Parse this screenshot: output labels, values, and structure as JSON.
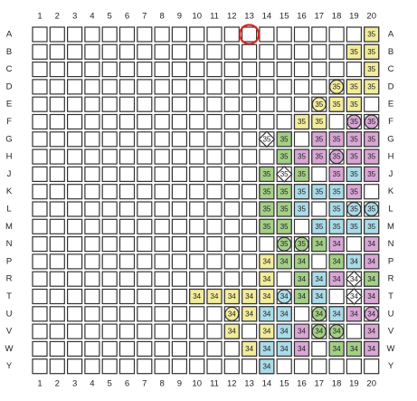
{
  "columns": [
    1,
    2,
    3,
    4,
    5,
    6,
    7,
    8,
    9,
    10,
    11,
    12,
    13,
    14,
    15,
    16,
    17,
    18,
    19,
    20
  ],
  "rows": [
    "A",
    "B",
    "C",
    "D",
    "E",
    "F",
    "G",
    "H",
    "J",
    "K",
    "L",
    "M",
    "N",
    "P",
    "R",
    "T",
    "U",
    "V",
    "W",
    "Y"
  ],
  "highlight": {
    "row": "A",
    "col": 13,
    "color": "#d9261c"
  },
  "colors": {
    "yellow": "#f2ec9b",
    "green": "#a3cf86",
    "blue": "#aadbe8",
    "pink": "#d9a6d6",
    "white": "#ffffff"
  },
  "cells": [
    {
      "row": "A",
      "col": 20,
      "label": "35",
      "color": "yellow",
      "shape": "square"
    },
    {
      "row": "B",
      "col": 19,
      "label": "35",
      "color": "yellow",
      "shape": "square"
    },
    {
      "row": "B",
      "col": 20,
      "label": "35",
      "color": "yellow",
      "shape": "square"
    },
    {
      "row": "C",
      "col": 20,
      "label": "35",
      "color": "yellow",
      "shape": "square"
    },
    {
      "row": "D",
      "col": 18,
      "label": "35",
      "color": "yellow",
      "shape": "circle"
    },
    {
      "row": "D",
      "col": 19,
      "label": "35",
      "color": "yellow",
      "shape": "square"
    },
    {
      "row": "D",
      "col": 20,
      "label": "35",
      "color": "yellow",
      "shape": "square"
    },
    {
      "row": "E",
      "col": 17,
      "label": "35",
      "color": "yellow",
      "shape": "circle"
    },
    {
      "row": "E",
      "col": 18,
      "label": "35",
      "color": "yellow",
      "shape": "square"
    },
    {
      "row": "E",
      "col": 19,
      "label": "35",
      "color": "yellow",
      "shape": "square"
    },
    {
      "row": "F",
      "col": 16,
      "label": "35",
      "color": "yellow",
      "shape": "square"
    },
    {
      "row": "F",
      "col": 17,
      "label": "35",
      "color": "yellow",
      "shape": "square"
    },
    {
      "row": "F",
      "col": 19,
      "label": "35",
      "color": "pink",
      "shape": "circle"
    },
    {
      "row": "F",
      "col": 20,
      "label": "35",
      "color": "pink",
      "shape": "circle"
    },
    {
      "row": "G",
      "col": 14,
      "label": "35",
      "color": "white",
      "shape": "diamond"
    },
    {
      "row": "G",
      "col": 15,
      "label": "35",
      "color": "green",
      "shape": "square"
    },
    {
      "row": "G",
      "col": 17,
      "label": "35",
      "color": "pink",
      "shape": "square"
    },
    {
      "row": "G",
      "col": 18,
      "label": "35",
      "color": "pink",
      "shape": "square"
    },
    {
      "row": "G",
      "col": 19,
      "label": "35",
      "color": "pink",
      "shape": "square"
    },
    {
      "row": "G",
      "col": 20,
      "label": "35",
      "color": "pink",
      "shape": "square"
    },
    {
      "row": "H",
      "col": 15,
      "label": "35",
      "color": "green",
      "shape": "square"
    },
    {
      "row": "H",
      "col": 16,
      "label": "35",
      "color": "pink",
      "shape": "square"
    },
    {
      "row": "H",
      "col": 17,
      "label": "35",
      "color": "pink",
      "shape": "square"
    },
    {
      "row": "H",
      "col": 18,
      "label": "35",
      "color": "pink",
      "shape": "circle"
    },
    {
      "row": "H",
      "col": 19,
      "label": "35",
      "color": "pink",
      "shape": "square"
    },
    {
      "row": "H",
      "col": 20,
      "label": "35",
      "color": "pink",
      "shape": "square"
    },
    {
      "row": "J",
      "col": 14,
      "label": "35",
      "color": "green",
      "shape": "square"
    },
    {
      "row": "J",
      "col": 15,
      "label": "35",
      "color": "white",
      "shape": "diamond"
    },
    {
      "row": "J",
      "col": 16,
      "label": "35",
      "color": "green",
      "shape": "square"
    },
    {
      "row": "J",
      "col": 18,
      "label": "35",
      "color": "pink",
      "shape": "square"
    },
    {
      "row": "J",
      "col": 19,
      "label": "35",
      "color": "blue",
      "shape": "square"
    },
    {
      "row": "J",
      "col": 20,
      "label": "35",
      "color": "pink",
      "shape": "square"
    },
    {
      "row": "K",
      "col": 14,
      "label": "35",
      "color": "green",
      "shape": "square"
    },
    {
      "row": "K",
      "col": 15,
      "label": "35",
      "color": "green",
      "shape": "square"
    },
    {
      "row": "K",
      "col": 16,
      "label": "35",
      "color": "blue",
      "shape": "square"
    },
    {
      "row": "K",
      "col": 17,
      "label": "35",
      "color": "blue",
      "shape": "square"
    },
    {
      "row": "K",
      "col": 18,
      "label": "35",
      "color": "blue",
      "shape": "square"
    },
    {
      "row": "K",
      "col": 19,
      "label": "35",
      "color": "pink",
      "shape": "square"
    },
    {
      "row": "L",
      "col": 14,
      "label": "35",
      "color": "green",
      "shape": "square"
    },
    {
      "row": "L",
      "col": 15,
      "label": "35",
      "color": "green",
      "shape": "square"
    },
    {
      "row": "L",
      "col": 16,
      "label": "35",
      "color": "blue",
      "shape": "square"
    },
    {
      "row": "L",
      "col": 18,
      "label": "35",
      "color": "blue",
      "shape": "square"
    },
    {
      "row": "L",
      "col": 19,
      "label": "35",
      "color": "blue",
      "shape": "circle"
    },
    {
      "row": "L",
      "col": 20,
      "label": "35",
      "color": "blue",
      "shape": "circle"
    },
    {
      "row": "M",
      "col": 14,
      "label": "35",
      "color": "green",
      "shape": "square"
    },
    {
      "row": "M",
      "col": 15,
      "label": "35",
      "color": "green",
      "shape": "square"
    },
    {
      "row": "M",
      "col": 17,
      "label": "35",
      "color": "blue",
      "shape": "square"
    },
    {
      "row": "M",
      "col": 18,
      "label": "35",
      "color": "blue",
      "shape": "square"
    },
    {
      "row": "M",
      "col": 19,
      "label": "35",
      "color": "blue",
      "shape": "square"
    },
    {
      "row": "M",
      "col": 20,
      "label": "35",
      "color": "blue",
      "shape": "square"
    },
    {
      "row": "N",
      "col": 15,
      "label": "35",
      "color": "green",
      "shape": "circle"
    },
    {
      "row": "N",
      "col": 16,
      "label": "35",
      "color": "green",
      "shape": "circle"
    },
    {
      "row": "N",
      "col": 17,
      "label": "34",
      "color": "green",
      "shape": "square"
    },
    {
      "row": "N",
      "col": 18,
      "label": "34",
      "color": "pink",
      "shape": "square"
    },
    {
      "row": "N",
      "col": 20,
      "label": "34",
      "color": "pink",
      "shape": "square"
    },
    {
      "row": "P",
      "col": 14,
      "label": "34",
      "color": "yellow",
      "shape": "square"
    },
    {
      "row": "P",
      "col": 15,
      "label": "34",
      "color": "green",
      "shape": "square"
    },
    {
      "row": "P",
      "col": 16,
      "label": "34",
      "color": "green",
      "shape": "square"
    },
    {
      "row": "P",
      "col": 18,
      "label": "34",
      "color": "green",
      "shape": "square"
    },
    {
      "row": "P",
      "col": 19,
      "label": "34",
      "color": "blue",
      "shape": "square"
    },
    {
      "row": "P",
      "col": 20,
      "label": "34",
      "color": "pink",
      "shape": "square"
    },
    {
      "row": "R",
      "col": 14,
      "label": "34",
      "color": "yellow",
      "shape": "square"
    },
    {
      "row": "R",
      "col": 16,
      "label": "34",
      "color": "green",
      "shape": "square"
    },
    {
      "row": "R",
      "col": 17,
      "label": "34",
      "color": "blue",
      "shape": "square"
    },
    {
      "row": "R",
      "col": 18,
      "label": "34",
      "color": "pink",
      "shape": "square"
    },
    {
      "row": "R",
      "col": 19,
      "label": "34",
      "color": "white",
      "shape": "diamond"
    },
    {
      "row": "R",
      "col": 20,
      "label": "34",
      "color": "green",
      "shape": "square"
    },
    {
      "row": "T",
      "col": 10,
      "label": "34",
      "color": "yellow",
      "shape": "square"
    },
    {
      "row": "T",
      "col": 11,
      "label": "34",
      "color": "yellow",
      "shape": "square"
    },
    {
      "row": "T",
      "col": 12,
      "label": "34",
      "color": "yellow",
      "shape": "square"
    },
    {
      "row": "T",
      "col": 13,
      "label": "34",
      "color": "yellow",
      "shape": "square"
    },
    {
      "row": "T",
      "col": 14,
      "label": "34",
      "color": "yellow",
      "shape": "square"
    },
    {
      "row": "T",
      "col": 15,
      "label": "34",
      "color": "blue",
      "shape": "circle"
    },
    {
      "row": "T",
      "col": 16,
      "label": "34",
      "color": "green",
      "shape": "square"
    },
    {
      "row": "T",
      "col": 17,
      "label": "34",
      "color": "blue",
      "shape": "square"
    },
    {
      "row": "T",
      "col": 19,
      "label": "34",
      "color": "white",
      "shape": "diamond"
    },
    {
      "row": "T",
      "col": 20,
      "label": "34",
      "color": "pink",
      "shape": "square"
    },
    {
      "row": "U",
      "col": 12,
      "label": "34",
      "color": "yellow",
      "shape": "circle"
    },
    {
      "row": "U",
      "col": 13,
      "label": "34",
      "color": "yellow",
      "shape": "square"
    },
    {
      "row": "U",
      "col": 14,
      "label": "34",
      "color": "blue",
      "shape": "square"
    },
    {
      "row": "U",
      "col": 15,
      "label": "34",
      "color": "blue",
      "shape": "square"
    },
    {
      "row": "U",
      "col": 17,
      "label": "34",
      "color": "green",
      "shape": "circle"
    },
    {
      "row": "U",
      "col": 18,
      "label": "34",
      "color": "blue",
      "shape": "square"
    },
    {
      "row": "U",
      "col": 19,
      "label": "34",
      "color": "pink",
      "shape": "square"
    },
    {
      "row": "U",
      "col": 20,
      "label": "34",
      "color": "pink",
      "shape": "circle"
    },
    {
      "row": "V",
      "col": 12,
      "label": "34",
      "color": "yellow",
      "shape": "square"
    },
    {
      "row": "V",
      "col": 14,
      "label": "34",
      "color": "yellow",
      "shape": "square"
    },
    {
      "row": "V",
      "col": 15,
      "label": "34",
      "color": "blue",
      "shape": "square"
    },
    {
      "row": "V",
      "col": 16,
      "label": "34",
      "color": "pink",
      "shape": "square"
    },
    {
      "row": "V",
      "col": 17,
      "label": "34",
      "color": "green",
      "shape": "circle"
    },
    {
      "row": "V",
      "col": 18,
      "label": "34",
      "color": "green",
      "shape": "circle"
    },
    {
      "row": "V",
      "col": 20,
      "label": "34",
      "color": "pink",
      "shape": "square"
    },
    {
      "row": "W",
      "col": 13,
      "label": "34",
      "color": "yellow",
      "shape": "square"
    },
    {
      "row": "W",
      "col": 14,
      "label": "34",
      "color": "blue",
      "shape": "square"
    },
    {
      "row": "W",
      "col": 15,
      "label": "34",
      "color": "blue",
      "shape": "square"
    },
    {
      "row": "W",
      "col": 16,
      "label": "34",
      "color": "pink",
      "shape": "square"
    },
    {
      "row": "W",
      "col": 18,
      "label": "34",
      "color": "green",
      "shape": "square"
    },
    {
      "row": "W",
      "col": 19,
      "label": "34",
      "color": "green",
      "shape": "square"
    },
    {
      "row": "W",
      "col": 20,
      "label": "34",
      "color": "pink",
      "shape": "square"
    },
    {
      "row": "Y",
      "col": 14,
      "label": "34",
      "color": "blue",
      "shape": "square"
    }
  ]
}
